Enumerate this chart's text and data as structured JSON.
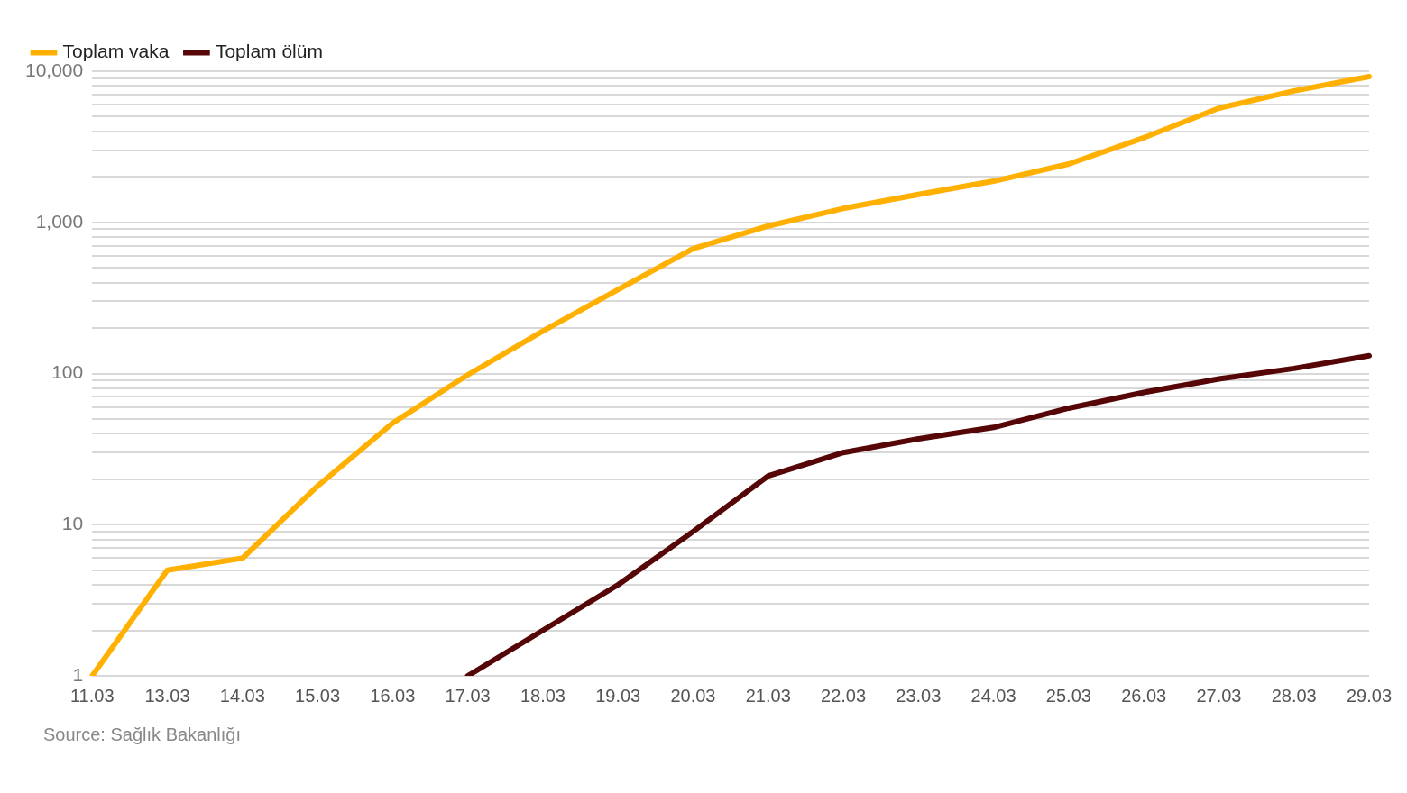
{
  "chart_data": {
    "type": "line",
    "categories": [
      "11.03",
      "13.03",
      "14.03",
      "15.03",
      "16.03",
      "17.03",
      "18.03",
      "19.03",
      "20.03",
      "21.03",
      "22.03",
      "23.03",
      "24.03",
      "25.03",
      "26.03",
      "27.03",
      "28.03",
      "29.03"
    ],
    "series": [
      {
        "name": "Toplam vaka",
        "color": "#ffb000",
        "values": [
          1,
          5,
          6,
          18,
          47,
          98,
          191,
          359,
          670,
          947,
          1236,
          1529,
          1872,
          2433,
          3629,
          5698,
          7402,
          9217
        ]
      },
      {
        "name": "Toplam ölüm",
        "color": "#560606",
        "values": [
          null,
          null,
          null,
          null,
          null,
          1,
          2,
          4,
          9,
          21,
          30,
          37,
          44,
          59,
          75,
          92,
          108,
          131
        ]
      }
    ],
    "log": "y",
    "ylim": [
      1,
      10000
    ],
    "yticks": [
      1,
      {
        "value": 2,
        "label": null
      },
      {
        "value": 3,
        "label": null
      },
      {
        "value": 4,
        "label": null
      },
      {
        "value": 5,
        "label": null
      },
      {
        "value": 6,
        "label": null
      },
      {
        "value": 7,
        "label": null
      },
      {
        "value": 8,
        "label": null
      },
      {
        "value": 9,
        "label": null
      },
      10,
      {
        "value": 20,
        "label": null
      },
      {
        "value": 30,
        "label": null
      },
      {
        "value": 40,
        "label": null
      },
      {
        "value": 50,
        "label": null
      },
      {
        "value": 60,
        "label": null
      },
      {
        "value": 70,
        "label": null
      },
      {
        "value": 80,
        "label": null
      },
      {
        "value": 90,
        "label": null
      },
      100,
      {
        "value": 200,
        "label": null
      },
      {
        "value": 300,
        "label": null
      },
      {
        "value": 400,
        "label": null
      },
      {
        "value": 500,
        "label": null
      },
      {
        "value": 600,
        "label": null
      },
      {
        "value": 700,
        "label": null
      },
      {
        "value": 800,
        "label": null
      },
      {
        "value": 900,
        "label": null
      },
      {
        "value": 1000,
        "label": "1,000"
      },
      {
        "value": 2000,
        "label": null
      },
      {
        "value": 3000,
        "label": null
      },
      {
        "value": 4000,
        "label": null
      },
      {
        "value": 5000,
        "label": null
      },
      {
        "value": 6000,
        "label": null
      },
      {
        "value": 7000,
        "label": null
      },
      {
        "value": 8000,
        "label": null
      },
      {
        "value": 9000,
        "label": null
      },
      {
        "value": 10000,
        "label": "10,000"
      }
    ],
    "grid": "y",
    "legend": "top left",
    "marker": "none",
    "line_style": "solid",
    "annotations": [
      "Source: Sağlık Bakanlığı"
    ]
  }
}
